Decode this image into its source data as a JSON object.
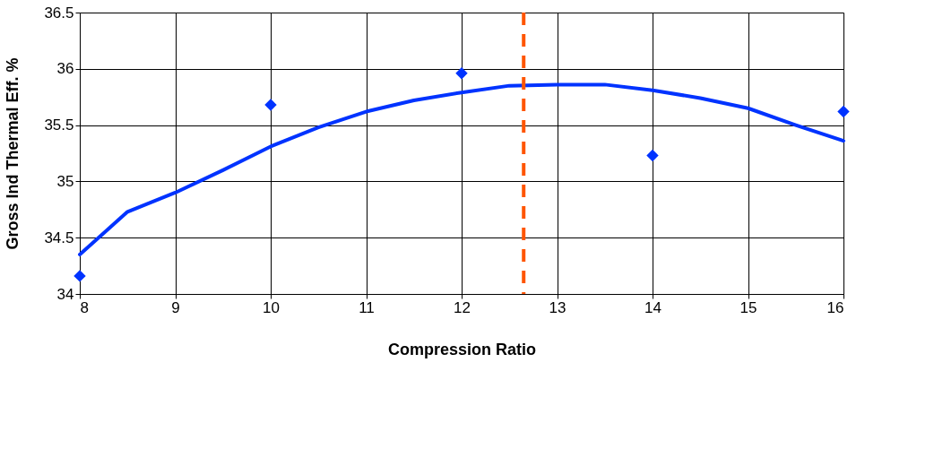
{
  "chart_data": {
    "type": "scatter",
    "xlabel": "Compression Ratio",
    "ylabel": "Gross Ind Thermal Eff. %",
    "xlim": [
      8,
      16
    ],
    "xticks": [
      8,
      9,
      10,
      11,
      12,
      13,
      14,
      15,
      16
    ],
    "ylim": [
      34,
      36.5
    ],
    "yticks": [
      34,
      34.5,
      35,
      35.5,
      36,
      36.5
    ],
    "grid": true,
    "series": [
      {
        "color": "#0033ff",
        "marker": "diamond",
        "x": [
          8,
          10,
          12,
          14,
          16
        ],
        "values": [
          34.16,
          35.68,
          35.96,
          35.23,
          35.62
        ]
      },
      {
        "type": "line",
        "color": "#0033ff",
        "marker": "none",
        "line_style": "solid",
        "x": [
          8,
          8.5,
          9,
          9.5,
          10,
          10.5,
          11,
          11.5,
          12,
          12.5,
          13,
          13.5,
          14,
          14.5,
          15,
          15.5,
          16
        ],
        "values": [
          34.35,
          34.73,
          34.9,
          35.1,
          35.31,
          35.48,
          35.62,
          35.72,
          35.79,
          35.85,
          35.86,
          35.86,
          35.81,
          35.74,
          35.65,
          35.5,
          35.36
        ]
      }
    ],
    "ref_lines": [
      {
        "axis": "x",
        "value": 12.65,
        "color": "#ff5500",
        "line_style": "dashed"
      }
    ]
  }
}
